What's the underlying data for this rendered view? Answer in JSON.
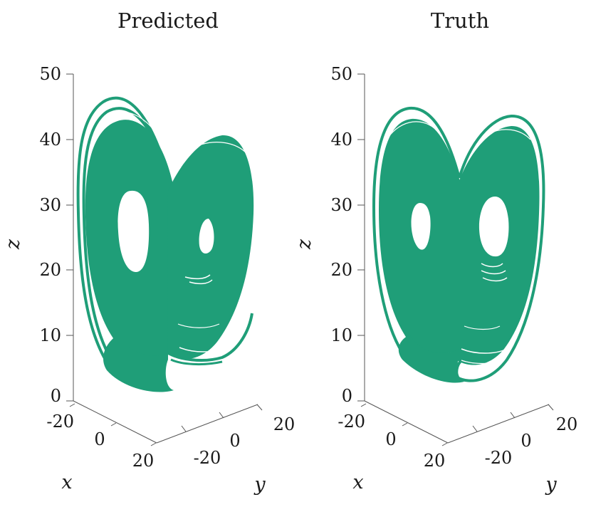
{
  "chart_data": [
    {
      "type": "scatter",
      "title": "Predicted",
      "xlabel": "x",
      "ylabel": "y",
      "zlabel": "z",
      "color": "#1f9e78",
      "z_ticks": [
        "0",
        "10",
        "20",
        "30",
        "40",
        "50"
      ],
      "x_ticks": [
        "-20",
        "0",
        "20"
      ],
      "y_ticks": [
        "-20",
        "0",
        "20"
      ],
      "zlim": [
        0,
        50
      ],
      "lobes": [
        {
          "side": "left",
          "hole_center_z": 27,
          "hole_size": "large",
          "outer_top_z": 46.5
        },
        {
          "side": "right",
          "hole_center_z": 25,
          "hole_size": "small",
          "outer_top_z": 40.5
        }
      ],
      "bottom_z": 1.5
    },
    {
      "type": "scatter",
      "title": "Truth",
      "xlabel": "x",
      "ylabel": "y",
      "zlabel": "z",
      "color": "#1f9e78",
      "z_ticks": [
        "0",
        "10",
        "20",
        "30",
        "40",
        "50"
      ],
      "x_ticks": [
        "-20",
        "0",
        "20"
      ],
      "y_ticks": [
        "-20",
        "0",
        "20"
      ],
      "zlim": [
        0,
        50
      ],
      "lobes": [
        {
          "side": "left",
          "hole_center_z": 27,
          "hole_size": "small",
          "outer_top_z": 45.5
        },
        {
          "side": "right",
          "hole_center_z": 26,
          "hole_size": "large",
          "outer_top_z": 43.5
        }
      ],
      "bottom_z": 2.5
    }
  ]
}
